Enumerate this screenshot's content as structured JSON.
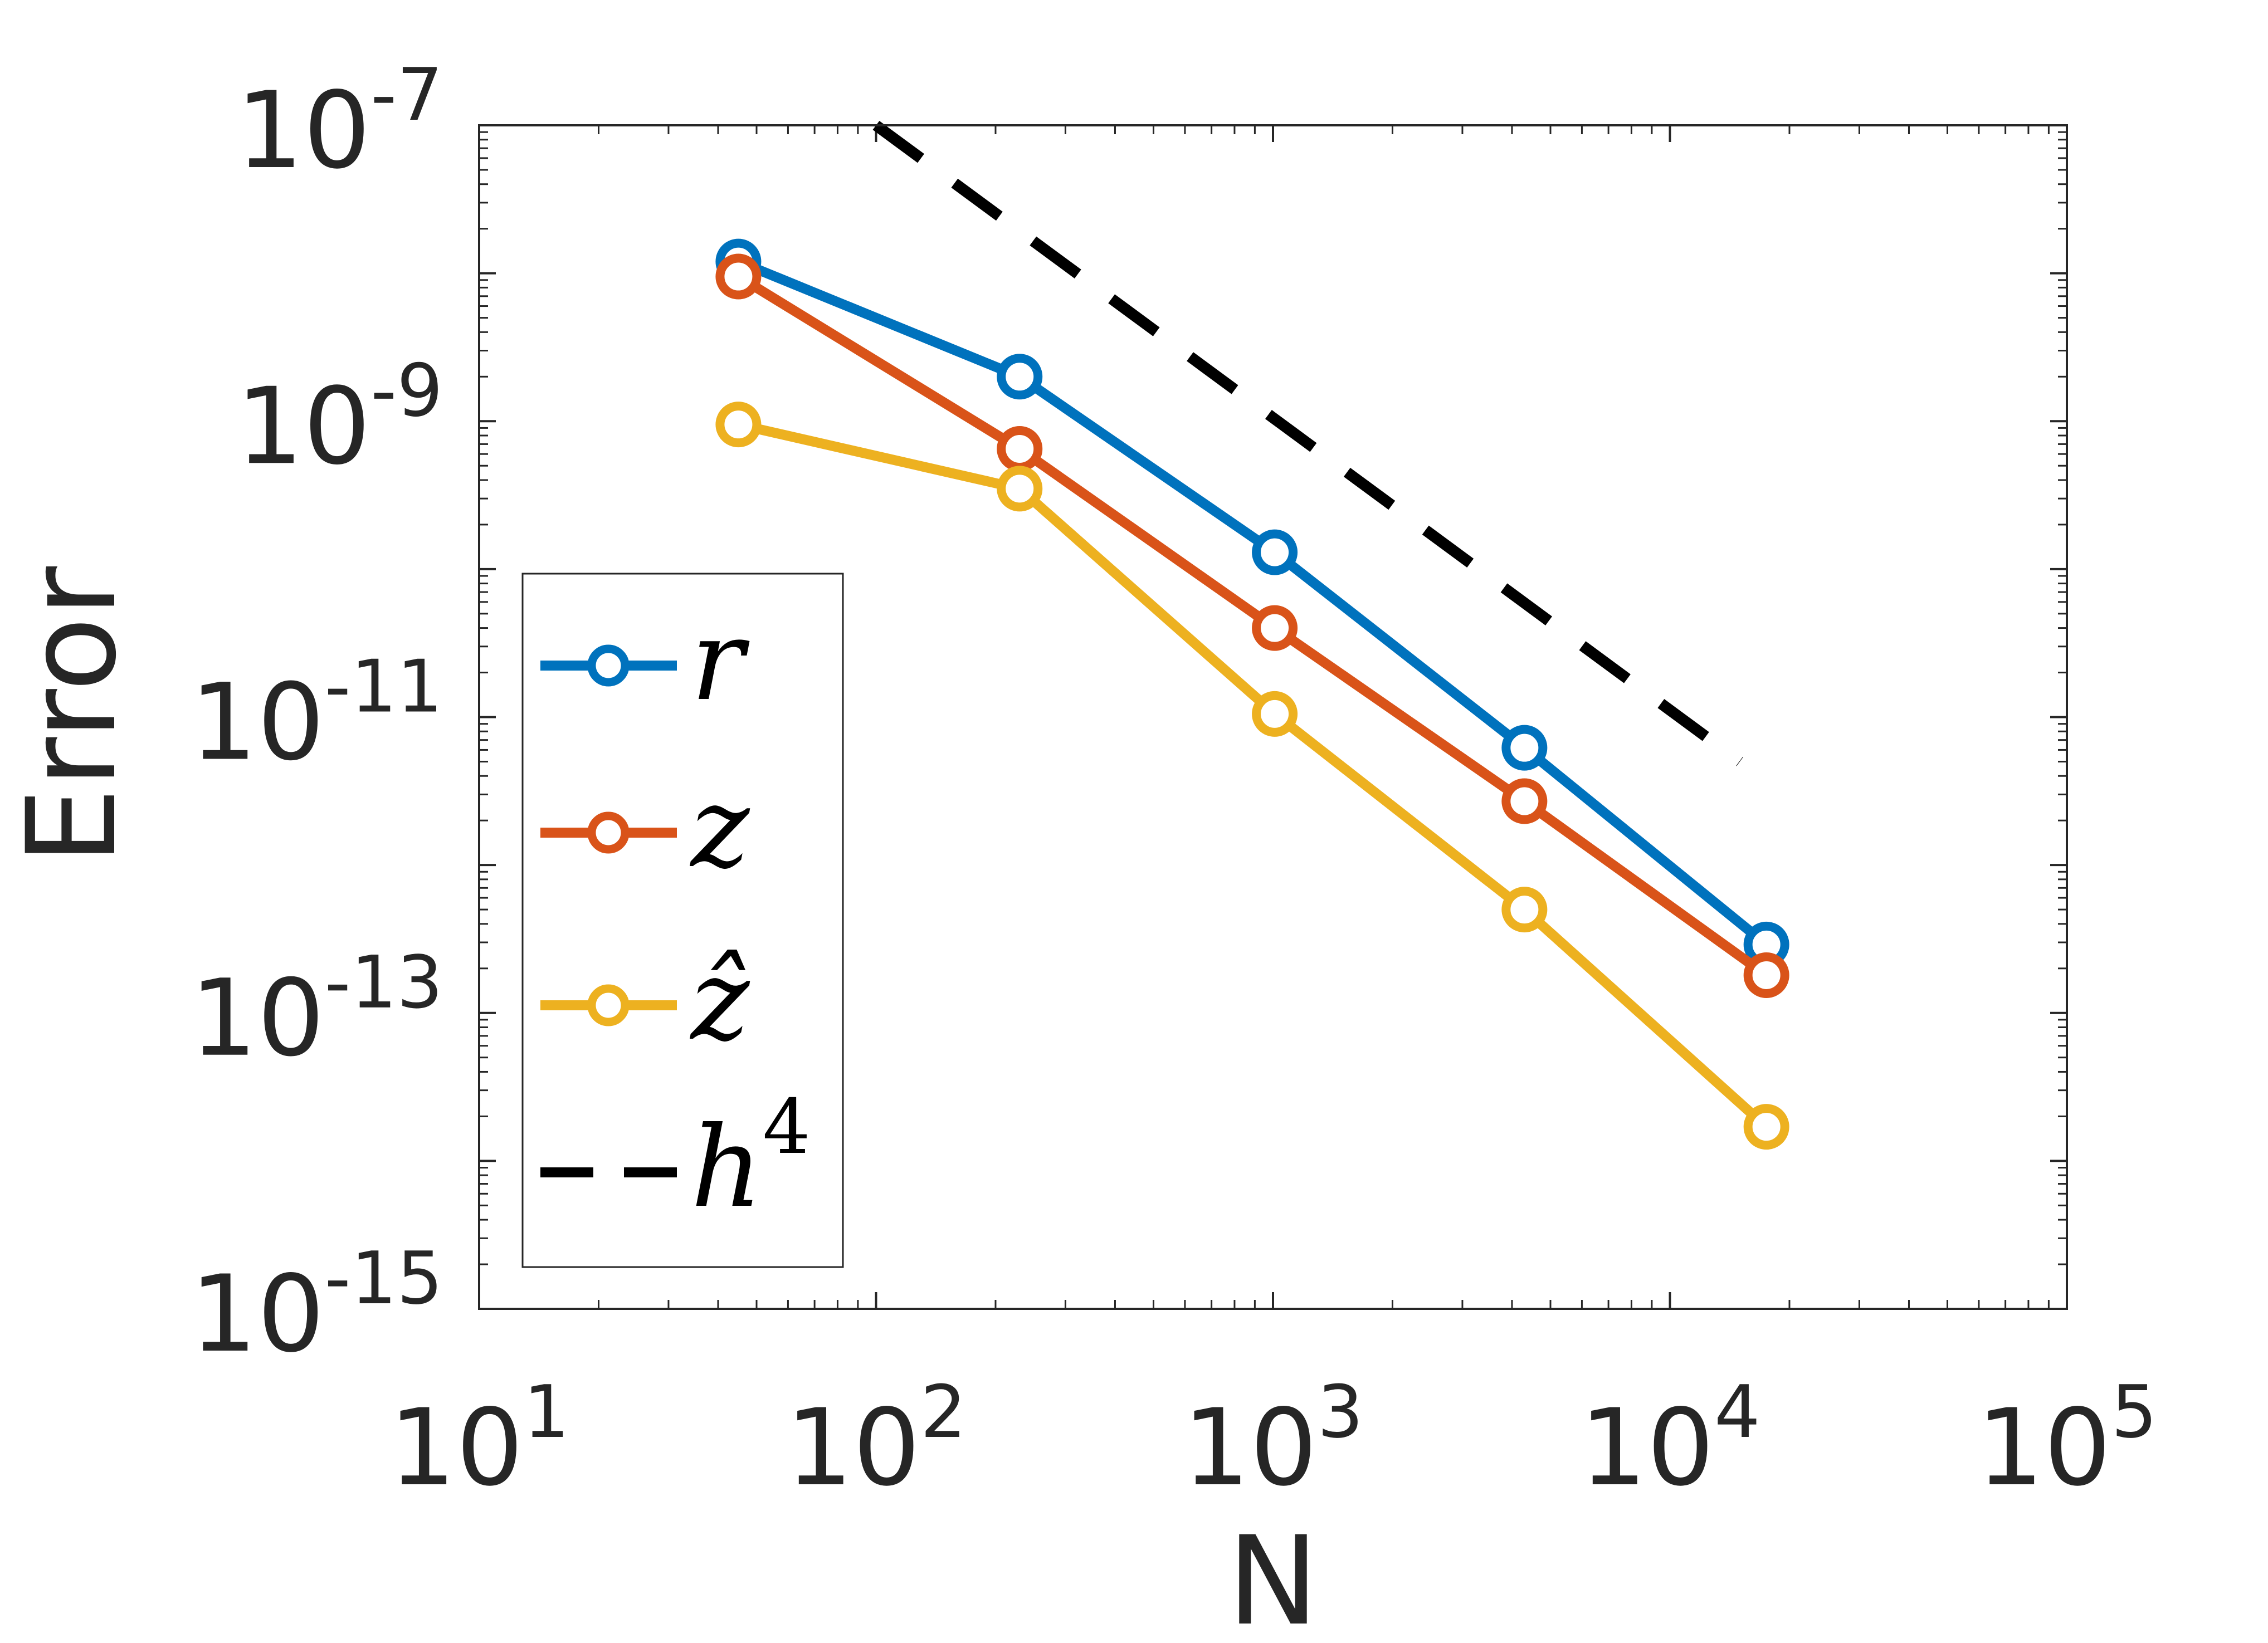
{
  "chart_data": {
    "type": "line",
    "title": "",
    "xlabel": "N",
    "ylabel": "Error",
    "xscale": "log",
    "yscale": "log",
    "xlim": [
      10,
      100000
    ],
    "ylim": [
      1e-15,
      1e-07
    ],
    "grid": false,
    "legend_position": "lower-left",
    "x_ticks": [
      {
        "value": 10,
        "base": "10",
        "exp": "1"
      },
      {
        "value": 100,
        "base": "10",
        "exp": "2"
      },
      {
        "value": 1000,
        "base": "10",
        "exp": "3"
      },
      {
        "value": 10000,
        "base": "10",
        "exp": "4"
      },
      {
        "value": 100000,
        "base": "10",
        "exp": "5"
      }
    ],
    "y_ticks": [
      {
        "value": 1e-07,
        "base": "10",
        "exp": "-7"
      },
      {
        "value": 1e-09,
        "base": "10",
        "exp": "-9"
      },
      {
        "value": 1e-11,
        "base": "10",
        "exp": "-11"
      },
      {
        "value": 1e-13,
        "base": "10",
        "exp": "-13"
      },
      {
        "value": 1e-15,
        "base": "10",
        "exp": "-15"
      }
    ],
    "series": [
      {
        "name": "r",
        "color": "#0072BD",
        "marker": "circle",
        "style": "solid",
        "x": [
          45,
          230,
          1010,
          4300,
          17500
        ],
        "y": [
          1.2e-08,
          2e-09,
          1.3e-10,
          6.2e-12,
          2.9e-13
        ]
      },
      {
        "name": "z",
        "color": "#D95319",
        "marker": "circle",
        "style": "solid",
        "x": [
          45,
          230,
          1010,
          4300,
          17500
        ],
        "y": [
          9.5e-09,
          6.5e-10,
          4e-11,
          2.7e-12,
          1.8e-13
        ]
      },
      {
        "name": "ẑ",
        "color": "#EDB120",
        "marker": "circle",
        "style": "solid",
        "x": [
          45,
          230,
          1010,
          4300,
          17500
        ],
        "y": [
          9.5e-10,
          3.5e-10,
          1.05e-11,
          5e-13,
          1.7e-14
        ]
      },
      {
        "name": "h",
        "sup": "4",
        "color": "#000000",
        "marker": "none",
        "style": "dashed",
        "x": [
          100,
          15000
        ],
        "y": [
          1e-07,
          5e-12
        ]
      }
    ]
  }
}
